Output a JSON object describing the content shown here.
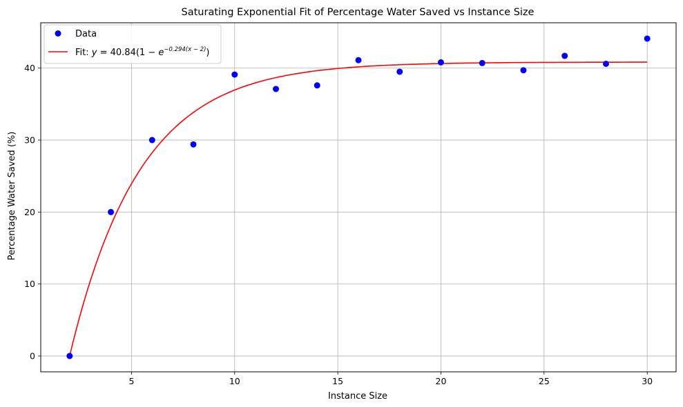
{
  "chart_data": {
    "type": "scatter",
    "title": "Saturating Exponential Fit of Percentage Water Saved vs Instance Size",
    "xlabel": "Instance Size",
    "ylabel": "Percentage Water Saved (%)",
    "xlim": [
      0.6,
      31.4
    ],
    "ylim": [
      -2.2,
      46.3
    ],
    "xticks": [
      5,
      10,
      15,
      20,
      25,
      30
    ],
    "yticks": [
      0,
      10,
      20,
      30,
      40
    ],
    "grid": true,
    "legend_position": "top-left",
    "series": [
      {
        "name": "Data",
        "type": "scatter",
        "color": "#0000ff",
        "x": [
          2,
          4,
          6,
          8,
          10,
          12,
          14,
          16,
          18,
          20,
          22,
          24,
          26,
          28,
          30
        ],
        "y": [
          0,
          20,
          30,
          29.4,
          39.1,
          37.1,
          37.6,
          41.1,
          39.5,
          40.8,
          40.7,
          39.7,
          41.7,
          40.6,
          44.1
        ]
      },
      {
        "name": "Fit: y = 40.84(1 − e^(−0.294(x − 2)))",
        "type": "line",
        "color": "#ff0000",
        "model": {
          "a": 40.84,
          "b": 0.294,
          "x0": 2,
          "x_range": [
            2,
            30
          ]
        }
      }
    ],
    "legend": {
      "data_label": "Data",
      "fit_prefix": "Fit: ",
      "fit_y": "y",
      "fit_eq": " = 40.84(1 − ",
      "fit_e": "e",
      "fit_exp": "−0.294(x − 2)",
      "fit_close": ")"
    }
  }
}
